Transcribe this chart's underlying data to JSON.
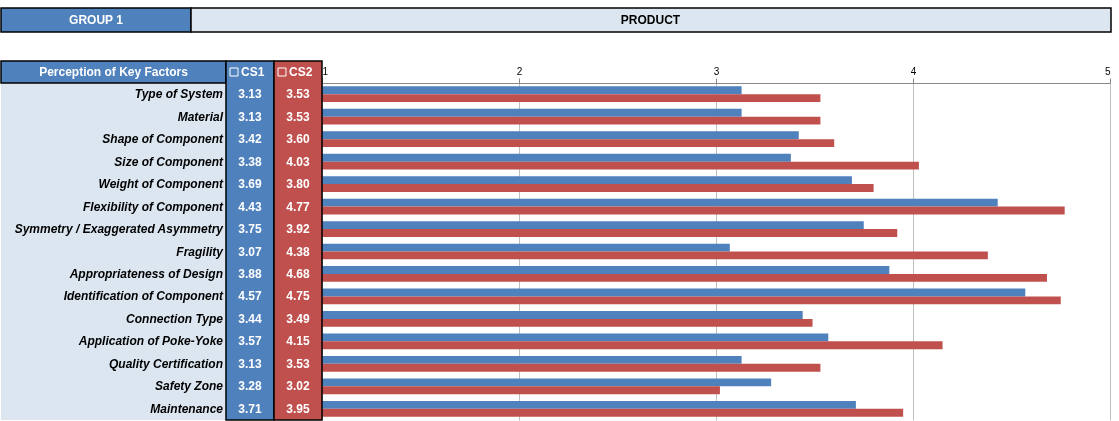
{
  "chart_data": {
    "type": "bar",
    "orientation": "horizontal",
    "title": "PRODUCT",
    "subtitle": "GROUP 1",
    "ylabel": "Perception of Key Factors",
    "categories": [
      "Type of System",
      "Material",
      "Shape of Component",
      "Size of Component",
      "Weight of Component",
      "Flexibility of Component",
      "Symmetry / Exaggerated Asymmetry",
      "Fragility",
      "Appropriateness of Design",
      "Identification of Component",
      "Connection Type",
      "Application of Poke-Yoke",
      "Quality Certification",
      "Safety Zone",
      "Maintenance"
    ],
    "series": [
      {
        "name": "CS1",
        "color": "#4f81bd",
        "values": [
          3.13,
          3.13,
          3.42,
          3.38,
          3.69,
          4.43,
          3.75,
          3.07,
          3.88,
          4.57,
          3.44,
          3.57,
          3.13,
          3.28,
          3.71
        ],
        "value_labels": [
          "3.13",
          "3.13",
          "3.42",
          "3.38",
          "3.69",
          "4.43",
          "3.75",
          "3.07",
          "3.88",
          "4.57",
          "3.44",
          "3.57",
          "3.13",
          "3.28",
          "3.71"
        ]
      },
      {
        "name": "CS2",
        "color": "#c0504d",
        "values": [
          3.53,
          3.53,
          3.6,
          4.03,
          3.8,
          4.77,
          3.92,
          4.38,
          4.68,
          4.75,
          3.49,
          4.15,
          3.53,
          3.02,
          3.95
        ],
        "value_labels": [
          "3.53",
          "3.53",
          "3.60",
          "4.03",
          "3.80",
          "4.77",
          "3.92",
          "4.38",
          "4.68",
          "4.75",
          "3.49",
          "4.15",
          "3.53",
          "3.02",
          "3.95"
        ]
      }
    ],
    "xlim": [
      1,
      5
    ],
    "xticks": [
      1,
      2,
      3,
      4,
      5
    ],
    "grid": "x",
    "legend": "top left"
  }
}
